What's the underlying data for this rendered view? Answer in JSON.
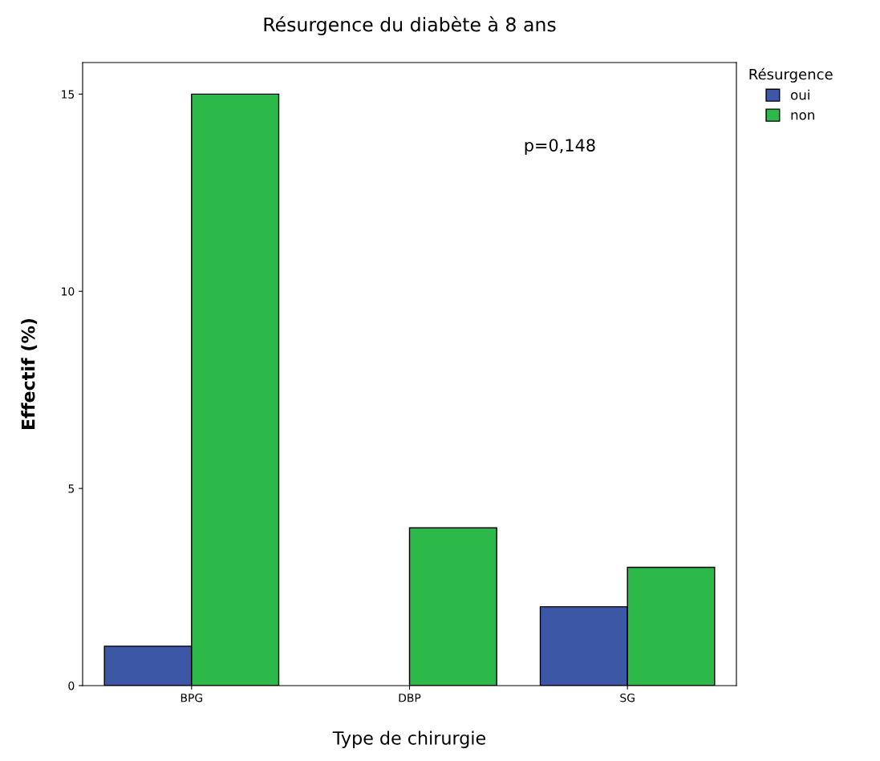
{
  "chart_data": {
    "type": "bar",
    "title": "Résurgence du diabète à 8 ans",
    "xlabel": "Type de chirurgie",
    "ylabel": "Effectif (%)",
    "legend_title": "Résurgence",
    "categories": [
      "BPG",
      "DBP",
      "SG"
    ],
    "series": [
      {
        "name": "oui",
        "color": "#3b57a6",
        "values": [
          1,
          0,
          2
        ]
      },
      {
        "name": "non",
        "color": "#2db84a",
        "values": [
          15,
          4,
          3
        ]
      }
    ],
    "ylim": [
      0,
      15.8
    ],
    "yticks": [
      0,
      5,
      10,
      15
    ],
    "grid": false,
    "legend": "top right",
    "annotations": [
      "p=0,148"
    ]
  }
}
